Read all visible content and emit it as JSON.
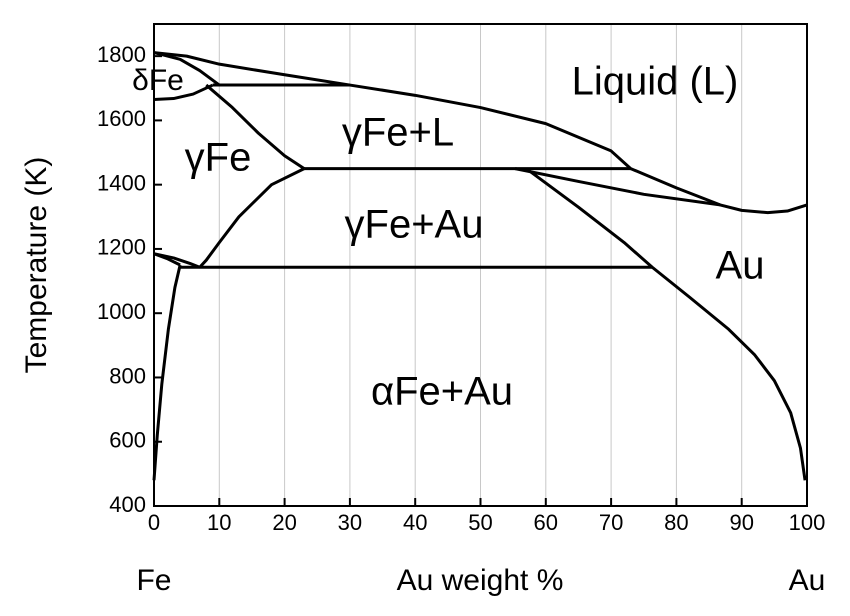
{
  "chart_data": {
    "type": "line",
    "xlabel": "Au weight %",
    "ylabel": "Temperature (K)",
    "x_end_labels": [
      "Fe",
      "Au"
    ],
    "xlim": [
      0,
      100
    ],
    "ylim": [
      400,
      1900
    ],
    "xticks": [
      0,
      10,
      20,
      30,
      40,
      50,
      60,
      70,
      80,
      90,
      100
    ],
    "yticks": [
      400,
      600,
      800,
      1000,
      1200,
      1400,
      1600,
      1800
    ],
    "grid": "x",
    "annotations": [
      "Liquid (L)",
      "δFe",
      "γFe",
      "γFe+L",
      "γFe+Au",
      "αFe+Au",
      "Au"
    ],
    "series": [
      {
        "color": "#000000",
        "x": [
          0,
          5,
          10,
          20,
          30,
          40,
          50,
          60,
          70,
          73,
          80,
          86.7,
          90,
          94,
          97,
          100
        ],
        "values": [
          1811,
          1800,
          1775,
          1742,
          1710,
          1678,
          1640,
          1590,
          1505,
          1450,
          1390,
          1337,
          1320,
          1313,
          1318,
          1337
        ]
      },
      {
        "color": "#000000",
        "x": [
          0,
          4,
          7,
          10
        ],
        "values": [
          1811,
          1790,
          1755,
          1710
        ]
      },
      {
        "color": "#000000",
        "x": [
          0,
          3,
          6,
          9
        ],
        "values": [
          1665,
          1668,
          1682,
          1710
        ]
      },
      {
        "color": "#000000",
        "x": [
          9,
          30
        ],
        "values": [
          1710,
          1710
        ]
      },
      {
        "color": "#000000",
        "x": [
          8,
          12,
          16,
          20,
          23
        ],
        "values": [
          1710,
          1640,
          1560,
          1490,
          1450
        ]
      },
      {
        "color": "#000000",
        "x": [
          23,
          73
        ],
        "values": [
          1450,
          1450
        ]
      },
      {
        "color": "#000000",
        "x": [
          55.3,
          65,
          75,
          86.7
        ],
        "values": [
          1450,
          1410,
          1370,
          1337
        ]
      },
      {
        "color": "#000000",
        "x": [
          57,
          65,
          72,
          76.3,
          82,
          88,
          92,
          95,
          97.5,
          99,
          99.7
        ],
        "values": [
          1450,
          1330,
          1220,
          1143,
          1050,
          950,
          870,
          790,
          690,
          580,
          480
        ]
      },
      {
        "color": "#000000",
        "x": [
          23,
          18,
          13,
          10,
          8,
          7
        ],
        "values": [
          1450,
          1400,
          1300,
          1220,
          1165,
          1143
        ]
      },
      {
        "color": "#000000",
        "x": [
          4,
          76.3
        ],
        "values": [
          1143,
          1143
        ]
      },
      {
        "color": "#000000",
        "x": [
          0,
          3,
          5.5,
          7
        ],
        "values": [
          1185,
          1172,
          1155,
          1143
        ]
      },
      {
        "color": "#000000",
        "x": [
          0,
          2,
          4
        ],
        "values": [
          1185,
          1170,
          1150
        ]
      },
      {
        "color": "#000000",
        "x": [
          4,
          3.2,
          2.2,
          1.2,
          0.5,
          0
        ],
        "values": [
          1150,
          1080,
          950,
          780,
          620,
          480
        ]
      }
    ]
  }
}
